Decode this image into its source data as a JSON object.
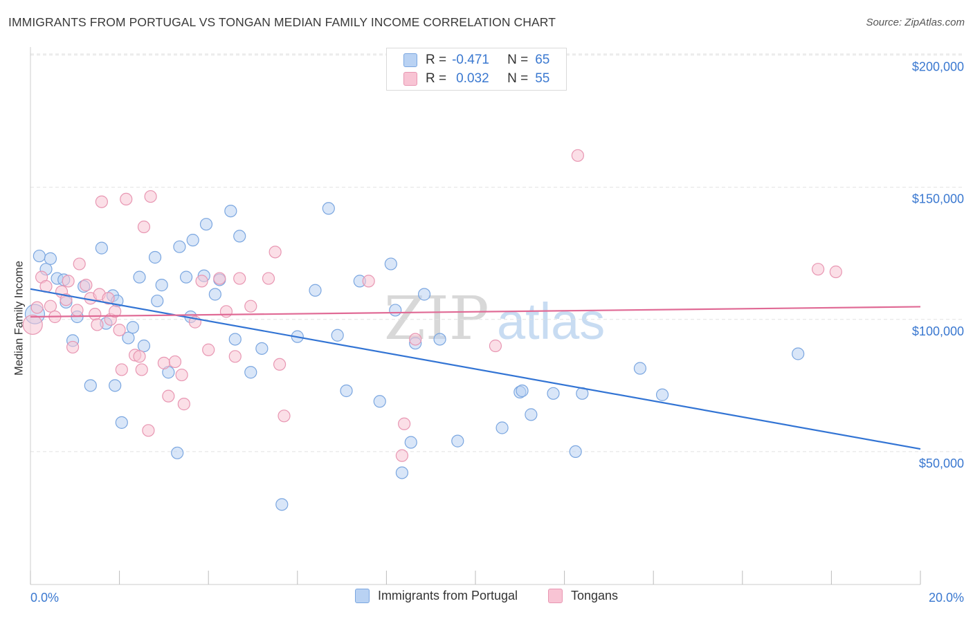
{
  "title": "IMMIGRANTS FROM PORTUGAL VS TONGAN MEDIAN FAMILY INCOME CORRELATION CHART",
  "source": "Source: ZipAtlas.com",
  "watermark": {
    "zip": "ZIP",
    "atlas": "atlas"
  },
  "colors": {
    "portugal_fill": "#b9d2f3",
    "portugal_stroke": "#7aa6e0",
    "portugal_line": "#3274d4",
    "tongan_fill": "#f8c4d4",
    "tongan_stroke": "#e896b2",
    "tongan_line": "#e06a95",
    "axis_text": "#3a78d0"
  },
  "legend": {
    "rows": [
      {
        "r_label": "R =",
        "r_value": "-0.471",
        "n_label": "N =",
        "n_value": "65"
      },
      {
        "r_label": "R =",
        "r_value": "0.032",
        "n_label": "N =",
        "n_value": "55"
      }
    ]
  },
  "bottom_legend": {
    "series1": "Immigrants from Portugal",
    "series2": "Tongans"
  },
  "chart_data": {
    "type": "scatter",
    "title": "IMMIGRANTS FROM PORTUGAL VS TONGAN MEDIAN FAMILY INCOME CORRELATION CHART",
    "xlabel": "",
    "ylabel": "Median Family Income",
    "xlim": [
      0,
      20
    ],
    "ylim": [
      0,
      210000
    ],
    "x_tick_labels": [
      "0.0%",
      "20.0%"
    ],
    "y_ticks": [
      50000,
      100000,
      150000,
      200000
    ],
    "y_tick_labels": [
      "$50,000",
      "$100,000",
      "$150,000",
      "$200,000"
    ],
    "grid": "horizontal dashed",
    "series": [
      {
        "name": "Immigrants from Portugal",
        "trend": {
          "x": [
            0,
            20
          ],
          "y": [
            111500,
            51000
          ]
        },
        "points": [
          [
            0.1,
            102000
          ],
          [
            0.2,
            124000
          ],
          [
            0.35,
            119000
          ],
          [
            0.45,
            123000
          ],
          [
            0.6,
            115500
          ],
          [
            0.75,
            115000
          ],
          [
            0.8,
            106500
          ],
          [
            0.95,
            92000
          ],
          [
            1.05,
            101000
          ],
          [
            1.2,
            112500
          ],
          [
            1.35,
            75000
          ],
          [
            1.6,
            127000
          ],
          [
            1.7,
            98500
          ],
          [
            1.85,
            109000
          ],
          [
            1.95,
            107000
          ],
          [
            1.9,
            75000
          ],
          [
            2.05,
            61000
          ],
          [
            2.2,
            93000
          ],
          [
            2.3,
            97000
          ],
          [
            2.45,
            116000
          ],
          [
            2.55,
            90000
          ],
          [
            2.8,
            123500
          ],
          [
            2.85,
            107000
          ],
          [
            2.95,
            113000
          ],
          [
            3.1,
            80000
          ],
          [
            3.3,
            49500
          ],
          [
            3.35,
            127500
          ],
          [
            3.5,
            116000
          ],
          [
            3.6,
            101000
          ],
          [
            3.65,
            130000
          ],
          [
            3.9,
            116500
          ],
          [
            3.95,
            136000
          ],
          [
            4.15,
            109500
          ],
          [
            4.25,
            115000
          ],
          [
            4.5,
            141000
          ],
          [
            4.6,
            92500
          ],
          [
            4.7,
            131500
          ],
          [
            4.95,
            80000
          ],
          [
            5.2,
            89000
          ],
          [
            5.65,
            30000
          ],
          [
            6.0,
            93500
          ],
          [
            6.4,
            111000
          ],
          [
            6.7,
            142000
          ],
          [
            6.9,
            94000
          ],
          [
            7.1,
            73000
          ],
          [
            7.4,
            114500
          ],
          [
            7.85,
            69000
          ],
          [
            8.1,
            121000
          ],
          [
            8.2,
            103500
          ],
          [
            8.35,
            42000
          ],
          [
            8.55,
            53500
          ],
          [
            8.65,
            91000
          ],
          [
            8.85,
            109500
          ],
          [
            9.2,
            92500
          ],
          [
            9.6,
            54000
          ],
          [
            10.6,
            59000
          ],
          [
            11.0,
            72500
          ],
          [
            11.05,
            73000
          ],
          [
            11.25,
            64000
          ],
          [
            11.75,
            72000
          ],
          [
            12.25,
            50000
          ],
          [
            12.4,
            72000
          ],
          [
            13.7,
            81500
          ],
          [
            14.2,
            71500
          ],
          [
            17.25,
            87000
          ]
        ]
      },
      {
        "name": "Tongans",
        "trend": {
          "x": [
            0,
            20
          ],
          "y": [
            101000,
            104800
          ]
        },
        "points": [
          [
            0.05,
            98000
          ],
          [
            0.15,
            104500
          ],
          [
            0.25,
            116000
          ],
          [
            0.35,
            112500
          ],
          [
            0.45,
            105000
          ],
          [
            0.55,
            101000
          ],
          [
            0.7,
            110500
          ],
          [
            0.8,
            107500
          ],
          [
            0.85,
            114500
          ],
          [
            0.95,
            89500
          ],
          [
            1.05,
            103500
          ],
          [
            1.1,
            121000
          ],
          [
            1.25,
            113000
          ],
          [
            1.35,
            108000
          ],
          [
            1.45,
            102000
          ],
          [
            1.5,
            98000
          ],
          [
            1.55,
            109500
          ],
          [
            1.6,
            144500
          ],
          [
            1.75,
            108000
          ],
          [
            1.8,
            100000
          ],
          [
            1.9,
            103000
          ],
          [
            2.0,
            96000
          ],
          [
            2.05,
            81000
          ],
          [
            2.15,
            145500
          ],
          [
            2.35,
            86500
          ],
          [
            2.45,
            86000
          ],
          [
            2.5,
            81000
          ],
          [
            2.55,
            135000
          ],
          [
            2.65,
            58000
          ],
          [
            2.7,
            146500
          ],
          [
            3.0,
            83500
          ],
          [
            3.1,
            71000
          ],
          [
            3.25,
            84000
          ],
          [
            3.4,
            79000
          ],
          [
            3.45,
            68000
          ],
          [
            3.7,
            99000
          ],
          [
            3.85,
            114500
          ],
          [
            4.0,
            88500
          ],
          [
            4.25,
            115500
          ],
          [
            4.4,
            103000
          ],
          [
            4.6,
            86000
          ],
          [
            4.7,
            115500
          ],
          [
            4.95,
            105000
          ],
          [
            5.35,
            115500
          ],
          [
            5.5,
            125500
          ],
          [
            5.6,
            83000
          ],
          [
            5.7,
            63500
          ],
          [
            7.6,
            114500
          ],
          [
            8.35,
            48500
          ],
          [
            8.4,
            60500
          ],
          [
            8.65,
            92500
          ],
          [
            10.45,
            90000
          ],
          [
            12.3,
            162000
          ],
          [
            17.7,
            119000
          ],
          [
            18.1,
            118000
          ]
        ]
      }
    ]
  }
}
